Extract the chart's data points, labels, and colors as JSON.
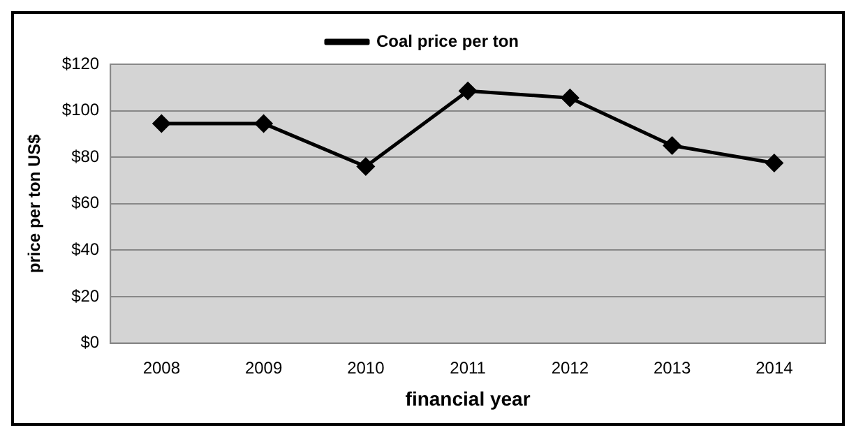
{
  "chart_data": {
    "type": "line",
    "xlabel": "financial year",
    "ylabel": "price per ton US$",
    "categories": [
      "2008",
      "2009",
      "2010",
      "2011",
      "2012",
      "2013",
      "2014"
    ],
    "series": [
      {
        "name": "Coal price per ton",
        "color": "#000000",
        "values": [
          94.5,
          94.5,
          76,
          108.5,
          105.5,
          85,
          77.5
        ]
      }
    ],
    "ylim": [
      0,
      120
    ],
    "yticks": [
      {
        "value": 0,
        "label": "$0"
      },
      {
        "value": 20,
        "label": "$20"
      },
      {
        "value": 40,
        "label": "$40"
      },
      {
        "value": 60,
        "label": "$60"
      },
      {
        "value": 80,
        "label": "$80"
      },
      {
        "value": 100,
        "label": "$100"
      },
      {
        "value": 120,
        "label": "$120"
      }
    ],
    "grid": "y",
    "legend": "top",
    "marker": "diamond",
    "line_style": "solid"
  }
}
